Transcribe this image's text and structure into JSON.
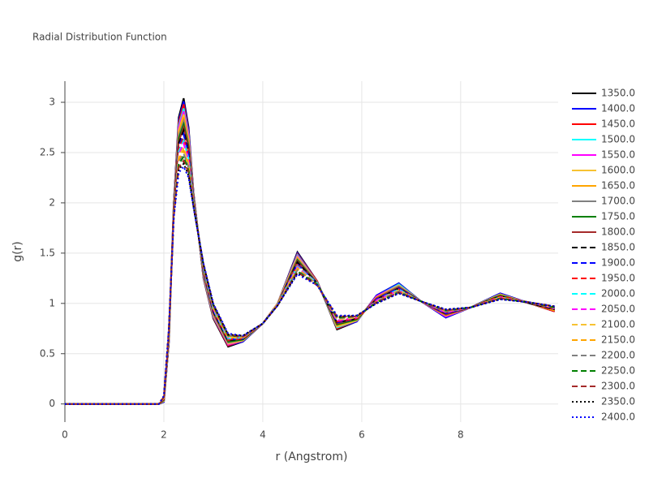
{
  "chart_data": {
    "type": "line",
    "title": "Radial Distribution Function",
    "x_label": "r (Angstrom)",
    "y_label": "g(r)",
    "x": [
      0,
      1,
      1.9,
      2.0,
      2.1,
      2.2,
      2.3,
      2.4,
      2.5,
      2.6,
      2.8,
      3.0,
      3.3,
      3.6,
      4.0,
      4.3,
      4.7,
      5.1,
      5.5,
      5.9,
      6.3,
      6.75,
      7.2,
      7.7,
      8.2,
      8.8,
      9.4,
      9.9
    ],
    "xlim": [
      0,
      9.97
    ],
    "xticks": [
      0,
      2,
      4,
      6,
      8
    ],
    "ylim": [
      -0.18,
      3.21
    ],
    "yticks": [
      0,
      0.5,
      1,
      1.5,
      2,
      2.5,
      3
    ],
    "grid": true,
    "legend": "right",
    "series": [
      {
        "name": "1350.0",
        "color": "#000000",
        "dash": "solid",
        "values": [
          0,
          0,
          0,
          0.02,
          0.6,
          2.0,
          2.85,
          3.04,
          2.75,
          2.1,
          1.25,
          0.85,
          0.57,
          0.62,
          0.8,
          1.0,
          1.51,
          1.22,
          0.74,
          0.82,
          1.08,
          1.2,
          1.02,
          0.86,
          0.96,
          1.1,
          1.0,
          0.92
        ]
      },
      {
        "name": "1400.0",
        "color": "#0000ff",
        "dash": "solid",
        "values": [
          0,
          0,
          0,
          0.02,
          0.61,
          1.99,
          2.82,
          3.01,
          2.73,
          2.09,
          1.26,
          0.86,
          0.58,
          0.62,
          0.8,
          1.0,
          1.5,
          1.22,
          0.75,
          0.82,
          1.08,
          1.2,
          1.02,
          0.86,
          0.96,
          1.1,
          1.0,
          0.92
        ]
      },
      {
        "name": "1450.0",
        "color": "#ff0000",
        "dash": "solid",
        "values": [
          0,
          0,
          0,
          0.03,
          0.61,
          1.99,
          2.8,
          2.98,
          2.7,
          2.09,
          1.26,
          0.86,
          0.58,
          0.63,
          0.8,
          1.0,
          1.49,
          1.22,
          0.75,
          0.83,
          1.07,
          1.19,
          1.02,
          0.87,
          0.96,
          1.09,
          1.0,
          0.92
        ]
      },
      {
        "name": "1500.0",
        "color": "#00ffff",
        "dash": "solid",
        "values": [
          0,
          0,
          0,
          0.03,
          0.62,
          1.98,
          2.77,
          2.94,
          2.68,
          2.08,
          1.27,
          0.87,
          0.59,
          0.63,
          0.8,
          1.0,
          1.48,
          1.21,
          0.76,
          0.83,
          1.07,
          1.19,
          1.02,
          0.87,
          0.96,
          1.09,
          1.0,
          0.93
        ]
      },
      {
        "name": "1550.0",
        "color": "#ff00ff",
        "dash": "solid",
        "values": [
          0,
          0,
          0,
          0.03,
          0.63,
          1.97,
          2.75,
          2.91,
          2.66,
          2.07,
          1.28,
          0.88,
          0.59,
          0.63,
          0.8,
          1.0,
          1.47,
          1.21,
          0.77,
          0.83,
          1.07,
          1.18,
          1.02,
          0.87,
          0.96,
          1.09,
          1.0,
          0.93
        ]
      },
      {
        "name": "1600.0",
        "color": "#f7c232",
        "dash": "solid",
        "values": [
          0,
          0,
          0,
          0.03,
          0.64,
          1.96,
          2.72,
          2.88,
          2.63,
          2.06,
          1.29,
          0.89,
          0.6,
          0.63,
          0.8,
          1.0,
          1.46,
          1.21,
          0.77,
          0.83,
          1.06,
          1.18,
          1.02,
          0.88,
          0.96,
          1.09,
          1.0,
          0.93
        ]
      },
      {
        "name": "1650.0",
        "color": "#ffa500",
        "dash": "solid",
        "values": [
          0,
          0,
          0,
          0.04,
          0.64,
          1.96,
          2.69,
          2.85,
          2.61,
          2.06,
          1.29,
          0.89,
          0.61,
          0.64,
          0.8,
          0.99,
          1.45,
          1.21,
          0.78,
          0.84,
          1.06,
          1.17,
          1.02,
          0.88,
          0.96,
          1.08,
          1.0,
          0.93
        ]
      },
      {
        "name": "1700.0",
        "color": "#808080",
        "dash": "solid",
        "values": [
          0,
          0,
          0,
          0.04,
          0.65,
          1.95,
          2.67,
          2.81,
          2.58,
          2.05,
          1.3,
          0.9,
          0.61,
          0.64,
          0.8,
          0.99,
          1.44,
          1.21,
          0.79,
          0.84,
          1.05,
          1.17,
          1.02,
          0.89,
          0.96,
          1.08,
          1.0,
          0.94
        ]
      },
      {
        "name": "1750.0",
        "color": "#008000",
        "dash": "solid",
        "values": [
          0,
          0,
          0,
          0.04,
          0.66,
          1.94,
          2.64,
          2.78,
          2.56,
          2.04,
          1.31,
          0.91,
          0.62,
          0.64,
          0.8,
          0.99,
          1.43,
          1.2,
          0.79,
          0.84,
          1.05,
          1.16,
          1.02,
          0.89,
          0.96,
          1.08,
          1.0,
          0.94
        ]
      },
      {
        "name": "1800.0",
        "color": "#a52a2a",
        "dash": "solid",
        "values": [
          0,
          0,
          0,
          0.05,
          0.66,
          1.94,
          2.61,
          2.75,
          2.54,
          2.04,
          1.31,
          0.91,
          0.63,
          0.65,
          0.8,
          0.99,
          1.42,
          1.2,
          0.8,
          0.85,
          1.05,
          1.16,
          1.02,
          0.89,
          0.96,
          1.07,
          1.0,
          0.94
        ]
      },
      {
        "name": "1850.0",
        "color": "#000000",
        "dash": "dash",
        "values": [
          0,
          0,
          0,
          0.05,
          0.67,
          1.93,
          2.59,
          2.72,
          2.51,
          2.03,
          1.32,
          0.92,
          0.63,
          0.65,
          0.8,
          0.99,
          1.41,
          1.2,
          0.81,
          0.85,
          1.04,
          1.15,
          1.02,
          0.9,
          0.96,
          1.07,
          1.0,
          0.94
        ]
      },
      {
        "name": "1900.0",
        "color": "#0000ff",
        "dash": "dash",
        "values": [
          0,
          0,
          0,
          0.05,
          0.68,
          1.92,
          2.56,
          2.68,
          2.49,
          2.02,
          1.33,
          0.93,
          0.64,
          0.65,
          0.8,
          0.99,
          1.39,
          1.2,
          0.81,
          0.85,
          1.04,
          1.15,
          1.02,
          0.9,
          0.96,
          1.07,
          1.01,
          0.95
        ]
      },
      {
        "name": "1950.0",
        "color": "#ff0000",
        "dash": "dash",
        "values": [
          0,
          0,
          0,
          0.05,
          0.69,
          1.91,
          2.54,
          2.65,
          2.46,
          2.01,
          1.34,
          0.94,
          0.64,
          0.65,
          0.8,
          0.99,
          1.38,
          1.2,
          0.82,
          0.85,
          1.03,
          1.14,
          1.02,
          0.91,
          0.96,
          1.07,
          1.01,
          0.95
        ]
      },
      {
        "name": "2000.0",
        "color": "#00ffff",
        "dash": "dash",
        "values": [
          0,
          0,
          0,
          0.06,
          0.69,
          1.91,
          2.51,
          2.62,
          2.44,
          2.01,
          1.34,
          0.94,
          0.65,
          0.66,
          0.8,
          0.99,
          1.37,
          1.2,
          0.83,
          0.86,
          1.03,
          1.14,
          1.02,
          0.91,
          0.96,
          1.06,
          1.01,
          0.95
        ]
      },
      {
        "name": "2050.0",
        "color": "#ff00ff",
        "dash": "dash",
        "values": [
          0,
          0,
          0,
          0.06,
          0.7,
          1.9,
          2.48,
          2.59,
          2.42,
          2.0,
          1.35,
          0.95,
          0.66,
          0.66,
          0.8,
          0.99,
          1.36,
          1.19,
          0.83,
          0.86,
          1.03,
          1.13,
          1.02,
          0.91,
          0.96,
          1.06,
          1.01,
          0.95
        ]
      },
      {
        "name": "2100.0",
        "color": "#f7c232",
        "dash": "dash",
        "values": [
          0,
          0,
          0,
          0.06,
          0.71,
          1.89,
          2.46,
          2.55,
          2.39,
          1.99,
          1.36,
          0.96,
          0.66,
          0.66,
          0.8,
          0.99,
          1.35,
          1.19,
          0.84,
          0.86,
          1.02,
          1.13,
          1.02,
          0.92,
          0.96,
          1.06,
          1.01,
          0.96
        ]
      },
      {
        "name": "2150.0",
        "color": "#ffa500",
        "dash": "dash",
        "values": [
          0,
          0,
          0,
          0.07,
          0.71,
          1.89,
          2.43,
          2.52,
          2.37,
          1.99,
          1.36,
          0.96,
          0.67,
          0.67,
          0.8,
          0.98,
          1.34,
          1.19,
          0.85,
          0.87,
          1.02,
          1.12,
          1.02,
          0.92,
          0.96,
          1.05,
          1.01,
          0.96
        ]
      },
      {
        "name": "2200.0",
        "color": "#808080",
        "dash": "dash",
        "values": [
          0,
          0,
          0,
          0.07,
          0.72,
          1.88,
          2.4,
          2.49,
          2.35,
          1.98,
          1.37,
          0.97,
          0.68,
          0.67,
          0.8,
          0.98,
          1.33,
          1.19,
          0.85,
          0.87,
          1.02,
          1.12,
          1.02,
          0.92,
          0.96,
          1.05,
          1.01,
          0.96
        ]
      },
      {
        "name": "2250.0",
        "color": "#008000",
        "dash": "dash",
        "values": [
          0,
          0,
          0,
          0.07,
          0.73,
          1.87,
          2.38,
          2.46,
          2.32,
          1.97,
          1.38,
          0.98,
          0.68,
          0.67,
          0.8,
          0.98,
          1.32,
          1.19,
          0.86,
          0.87,
          1.01,
          1.11,
          1.02,
          0.93,
          0.96,
          1.05,
          1.01,
          0.96
        ]
      },
      {
        "name": "2300.0",
        "color": "#a52a2a",
        "dash": "dash",
        "values": [
          0,
          0,
          0,
          0.07,
          0.74,
          1.86,
          2.35,
          2.42,
          2.3,
          1.96,
          1.39,
          0.99,
          0.69,
          0.67,
          0.8,
          0.98,
          1.31,
          1.18,
          0.87,
          0.87,
          1.01,
          1.11,
          1.02,
          0.93,
          0.96,
          1.05,
          1.01,
          0.97
        ]
      },
      {
        "name": "2350.0",
        "color": "#000000",
        "dash": "dot",
        "values": [
          0,
          0,
          0,
          0.08,
          0.74,
          1.86,
          2.33,
          2.39,
          2.27,
          1.96,
          1.39,
          0.99,
          0.69,
          0.68,
          0.8,
          0.98,
          1.3,
          1.18,
          0.87,
          0.88,
          1.0,
          1.1,
          1.02,
          0.94,
          0.96,
          1.04,
          1.01,
          0.97
        ]
      },
      {
        "name": "2400.0",
        "color": "#0000ff",
        "dash": "dot",
        "values": [
          0,
          0,
          0,
          0.08,
          0.75,
          1.85,
          2.3,
          2.36,
          2.25,
          1.95,
          1.4,
          1.0,
          0.7,
          0.68,
          0.8,
          0.98,
          1.29,
          1.18,
          0.88,
          0.88,
          1.0,
          1.1,
          1.02,
          0.94,
          0.96,
          1.04,
          1.01,
          0.97
        ]
      }
    ]
  }
}
